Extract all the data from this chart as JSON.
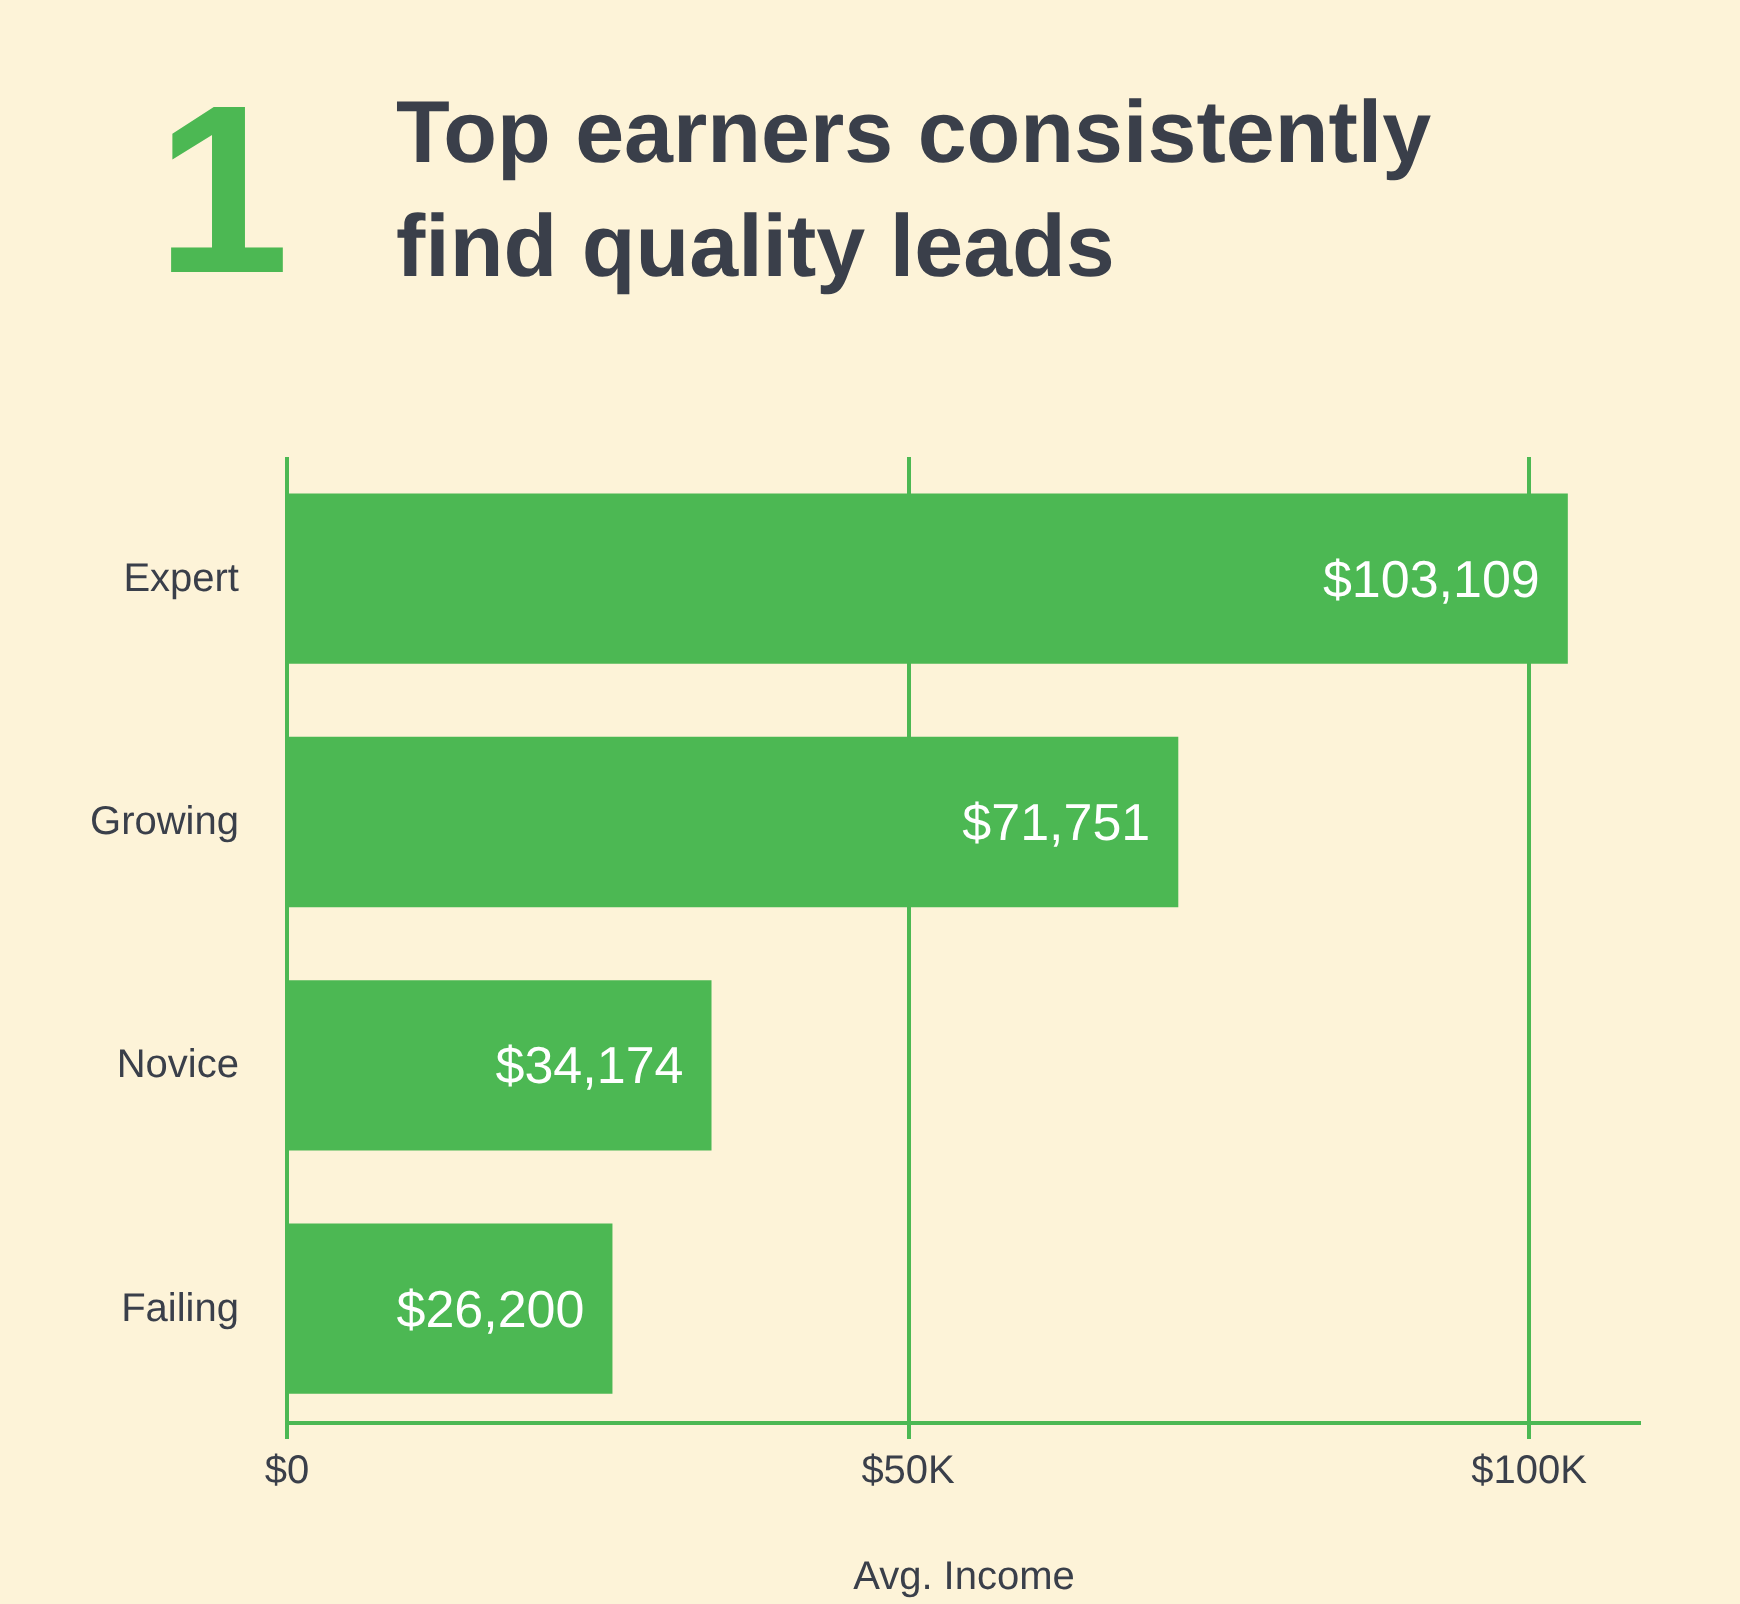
{
  "chart_data": {
    "type": "bar",
    "orientation": "horizontal",
    "title": "Top earners consistently find quality leads",
    "annotations": [
      "1"
    ],
    "categories": [
      "Expert",
      "Growing",
      "Novice",
      "Failing"
    ],
    "values": [
      103109,
      71751,
      34174,
      26200
    ],
    "color": "#4cb853",
    "xlim": [
      0,
      109000
    ],
    "xticks": [
      {
        "value": 0,
        "label": "$0"
      },
      {
        "value": 50000,
        "label": "$50K"
      },
      {
        "value": 100000,
        "label": "$100K"
      }
    ],
    "value_labels": [
      "$103,109",
      "$71,751",
      "$34,174",
      "$26,200"
    ],
    "xlabel": "Avg. Income",
    "grid": "x"
  }
}
